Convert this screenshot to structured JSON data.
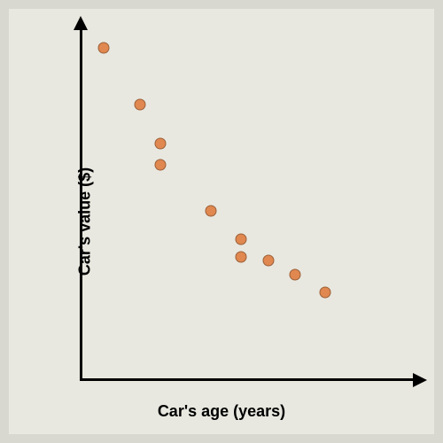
{
  "chart": {
    "type": "scatter",
    "xlabel": "Car's age (years)",
    "ylabel": "Car's value ($)",
    "label_fontsize": 18,
    "label_fontweight": "bold",
    "background_color": "#e8e8e0",
    "page_background": "#d8d8d0",
    "axis_color": "#000000",
    "axis_width": 3,
    "marker_color": "#e08850",
    "marker_border": "rgba(0,0,0,0.3)",
    "marker_size": 13,
    "xlim": [
      0,
      10
    ],
    "ylim": [
      0,
      10
    ],
    "points": [
      {
        "x": 0.7,
        "y": 9.4
      },
      {
        "x": 1.8,
        "y": 7.8
      },
      {
        "x": 2.4,
        "y": 6.7
      },
      {
        "x": 2.4,
        "y": 6.1
      },
      {
        "x": 3.9,
        "y": 4.8
      },
      {
        "x": 4.8,
        "y": 4.0
      },
      {
        "x": 4.8,
        "y": 3.5
      },
      {
        "x": 5.6,
        "y": 3.4
      },
      {
        "x": 6.4,
        "y": 3.0
      },
      {
        "x": 7.3,
        "y": 2.5
      }
    ]
  }
}
